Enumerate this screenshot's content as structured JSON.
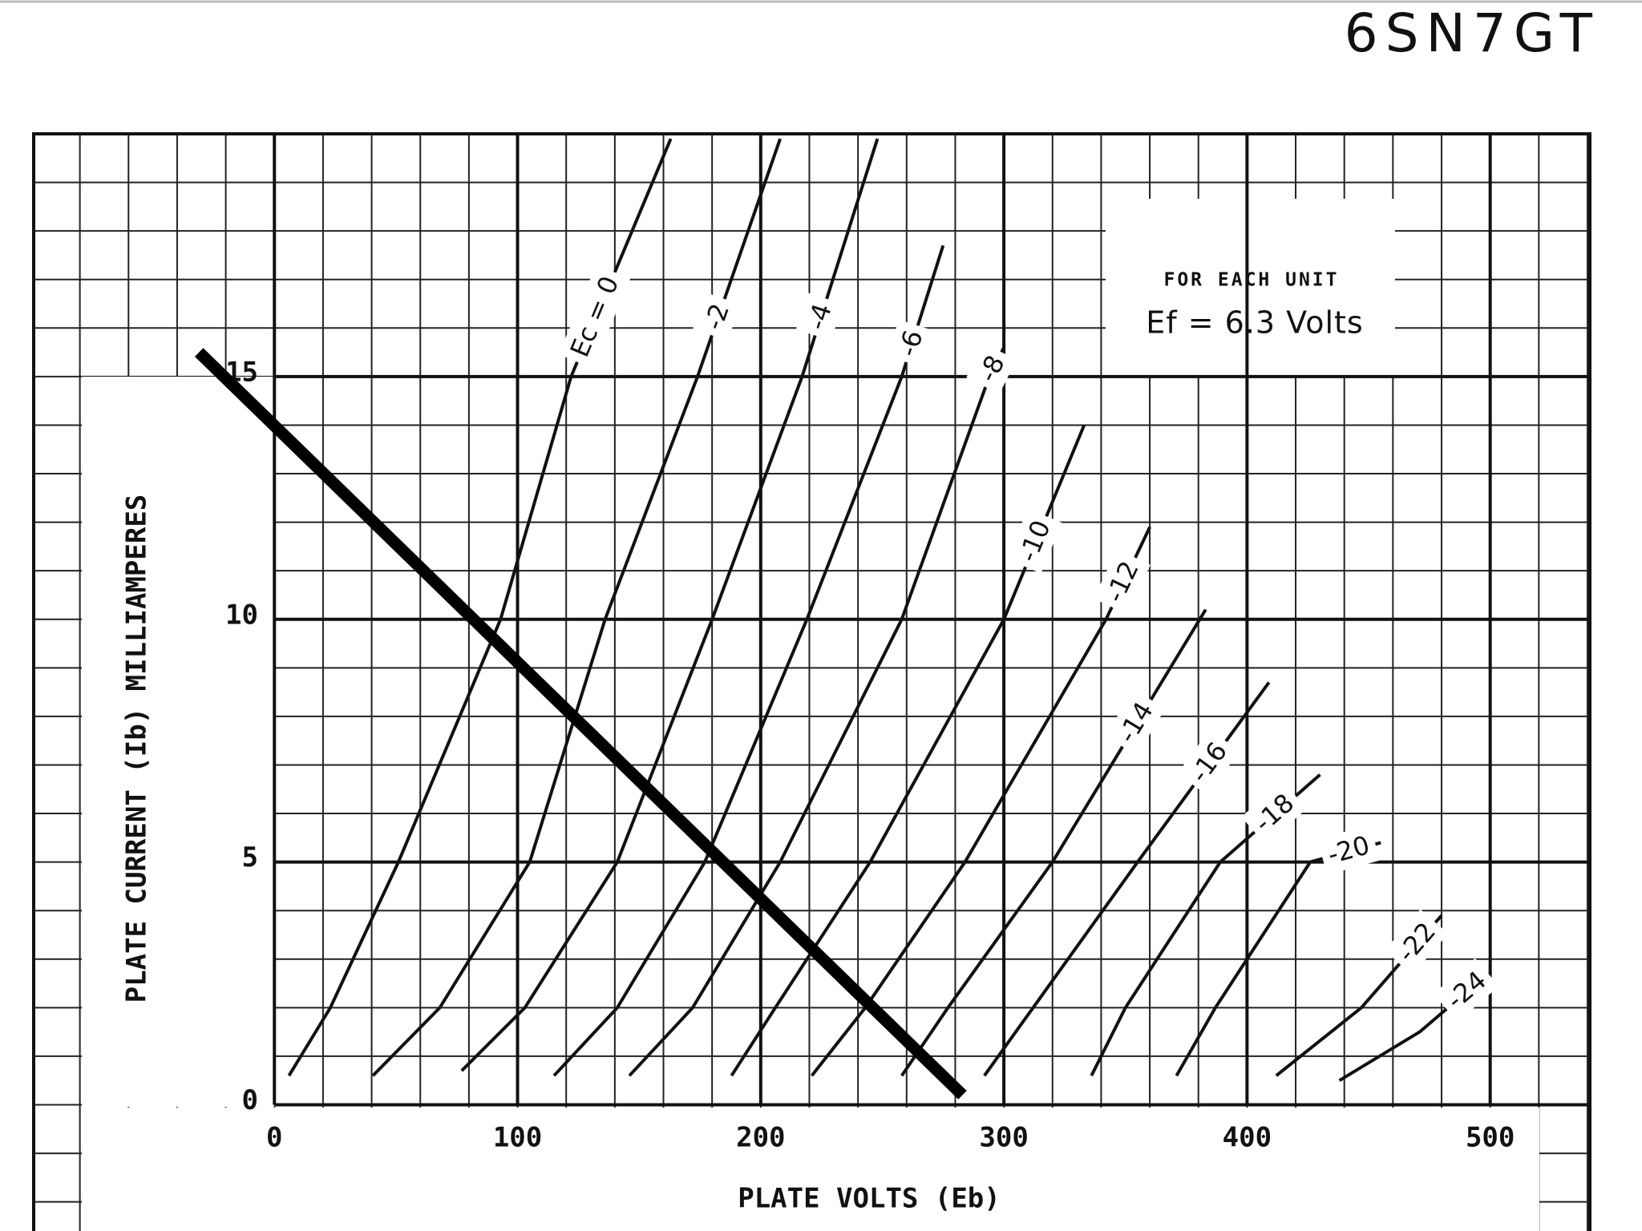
{
  "chart_data": {
    "type": "line",
    "title": "6SN7GT",
    "x_label": "PLATE VOLTS (Eb)",
    "y_label": "PLATE CURRENT (Ib) MILLIAMPERES",
    "annotations": [
      "FOR EACH UNIT",
      "Ef = 6.3 Volts"
    ],
    "xlim": [
      -99,
      541
    ],
    "ylim": [
      -2.6,
      20
    ],
    "xticks": [
      0,
      100,
      200,
      300,
      400,
      500
    ],
    "yticks": [
      0,
      5,
      10,
      15
    ],
    "grid": true,
    "series": [
      {
        "name": "Ec = 0",
        "color": "#111111",
        "x": [
          6,
          23,
          51,
          93,
          122,
          163
        ],
        "values": [
          0.6,
          2,
          5,
          10,
          15,
          19.9
        ]
      },
      {
        "name": "-2",
        "color": "#111111",
        "x": [
          40.5,
          68,
          105,
          136,
          174,
          208
        ],
        "values": [
          0.6,
          2,
          5,
          10,
          15,
          19.9
        ]
      },
      {
        "name": "-4",
        "color": "#111111",
        "x": [
          77,
          103,
          141,
          180,
          217,
          248
        ],
        "values": [
          0.7,
          2,
          5,
          10,
          15,
          19.9
        ]
      },
      {
        "name": "-6",
        "color": "#111111",
        "x": [
          115,
          141,
          177,
          219,
          258,
          275
        ],
        "values": [
          0.6,
          2,
          5,
          10,
          15,
          17.7
        ]
      },
      {
        "name": "-8",
        "color": "#111111",
        "x": [
          146,
          172,
          208,
          258,
          294,
          300
        ],
        "values": [
          0.6,
          2,
          5,
          10,
          15,
          15.6
        ]
      },
      {
        "name": "-10",
        "color": "#111111",
        "x": [
          188,
          206,
          245,
          300,
          333
        ],
        "values": [
          0.6,
          2,
          5,
          10,
          14
        ]
      },
      {
        "name": "-12",
        "color": "#111111",
        "x": [
          221,
          243,
          284,
          342,
          360
        ],
        "values": [
          0.6,
          2,
          5,
          10,
          11.9
        ]
      },
      {
        "name": "-14",
        "color": "#111111",
        "x": [
          258,
          277,
          320,
          383
        ],
        "values": [
          0.6,
          2,
          5,
          10.2
        ]
      },
      {
        "name": "-16",
        "color": "#111111",
        "x": [
          292,
          312,
          355,
          409
        ],
        "values": [
          0.6,
          2,
          5,
          8.7
        ]
      },
      {
        "name": "-18",
        "color": "#111111",
        "x": [
          336,
          350,
          389,
          430
        ],
        "values": [
          0.6,
          2,
          5,
          6.8
        ]
      },
      {
        "name": "-20",
        "color": "#111111",
        "x": [
          371,
          387,
          426,
          455
        ],
        "values": [
          0.6,
          2,
          5,
          5.4
        ]
      },
      {
        "name": "-22",
        "color": "#111111",
        "x": [
          412,
          447,
          480
        ],
        "values": [
          0.6,
          2,
          3.9
        ]
      },
      {
        "name": "-24",
        "color": "#111111",
        "x": [
          438,
          471,
          499
        ],
        "values": [
          0.5,
          1.5,
          2.7
        ]
      }
    ],
    "load_line": {
      "color": "#000000",
      "x": [
        -31,
        283
      ],
      "values": [
        15.5,
        0.2
      ]
    }
  }
}
